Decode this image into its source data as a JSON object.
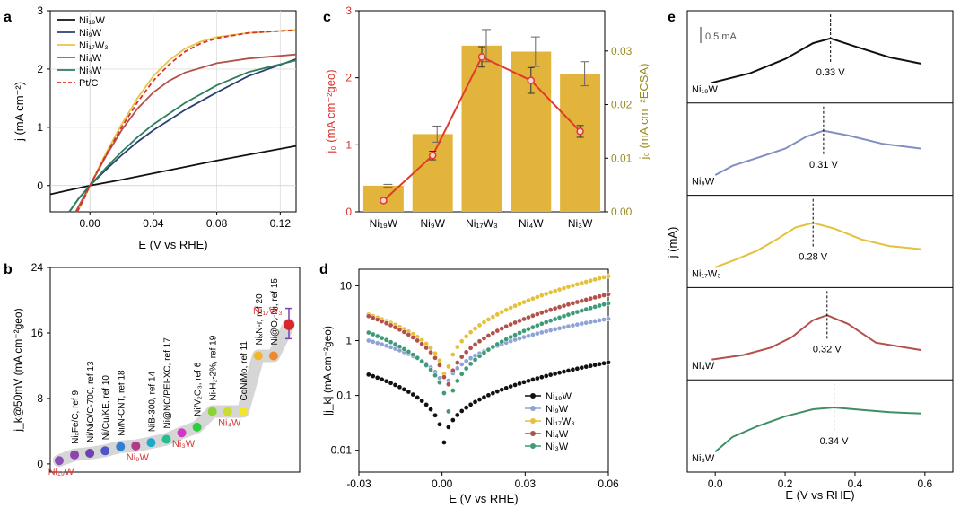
{
  "panels": {
    "a": {
      "label": "a",
      "type": "line",
      "xlabel": "E (V vs RHE)",
      "ylabel": "j (mA cm⁻²)",
      "xlim": [
        -0.025,
        0.13
      ],
      "ylim": [
        -0.45,
        3.0
      ],
      "xticks": [
        "0.00",
        "0.04",
        "0.08",
        "0.12"
      ],
      "yticks": [
        "0",
        "1",
        "2",
        "3"
      ],
      "series": [
        {
          "name": "Ni19W",
          "legend": "Ni₁₉W",
          "color": "#111111",
          "dash": false,
          "x": [
            -0.025,
            0.0,
            0.02,
            0.04,
            0.06,
            0.08,
            0.1,
            0.13
          ],
          "y": [
            -0.15,
            0.0,
            0.1,
            0.21,
            0.32,
            0.43,
            0.53,
            0.68
          ]
        },
        {
          "name": "Ni9W",
          "legend": "Ni₉W",
          "color": "#2b3f73",
          "dash": false,
          "x": [
            -0.013,
            -0.007,
            0.0,
            0.01,
            0.02,
            0.03,
            0.04,
            0.06,
            0.08,
            0.1,
            0.13
          ],
          "y": [
            -0.45,
            -0.22,
            0.0,
            0.27,
            0.52,
            0.75,
            0.95,
            1.3,
            1.6,
            1.88,
            2.17
          ]
        },
        {
          "name": "Ni17W3",
          "legend": "Ni₁₇W₃",
          "color": "#e8c547",
          "dash": false,
          "x": [
            -0.008,
            -0.004,
            0.0,
            0.01,
            0.02,
            0.03,
            0.04,
            0.05,
            0.06,
            0.07,
            0.08,
            0.1,
            0.13
          ],
          "y": [
            -0.45,
            -0.25,
            0.0,
            0.55,
            1.05,
            1.5,
            1.88,
            2.15,
            2.35,
            2.47,
            2.55,
            2.62,
            2.67
          ]
        },
        {
          "name": "Ni4W",
          "legend": "Ni₄W",
          "color": "#b4504a",
          "dash": false,
          "x": [
            -0.009,
            -0.005,
            0.0,
            0.01,
            0.02,
            0.03,
            0.04,
            0.05,
            0.06,
            0.08,
            0.1,
            0.13
          ],
          "y": [
            -0.45,
            -0.25,
            0.0,
            0.5,
            0.95,
            1.32,
            1.6,
            1.8,
            1.94,
            2.1,
            2.18,
            2.25
          ]
        },
        {
          "name": "Ni3W",
          "legend": "Ni₃W",
          "color": "#2e7d5b",
          "dash": false,
          "x": [
            -0.013,
            -0.007,
            0.0,
            0.01,
            0.02,
            0.03,
            0.04,
            0.06,
            0.08,
            0.1,
            0.13
          ],
          "y": [
            -0.45,
            -0.22,
            0.0,
            0.3,
            0.58,
            0.83,
            1.05,
            1.42,
            1.72,
            1.95,
            2.15
          ]
        },
        {
          "name": "PtC",
          "legend": "Pt/C",
          "color": "#d9312b",
          "dash": true,
          "x": [
            -0.008,
            -0.004,
            0.0,
            0.01,
            0.02,
            0.03,
            0.04,
            0.05,
            0.06,
            0.07,
            0.08,
            0.1,
            0.13
          ],
          "y": [
            -0.45,
            -0.24,
            0.0,
            0.52,
            1.0,
            1.43,
            1.8,
            2.08,
            2.3,
            2.44,
            2.53,
            2.62,
            2.67
          ]
        }
      ]
    },
    "b": {
      "label": "b",
      "type": "scatter",
      "ylabel": "j_k@50mV (mA cm⁻²geo)",
      "ylim": [
        -1,
        24
      ],
      "yticks": [
        "0",
        "8",
        "16",
        "24"
      ],
      "points": [
        {
          "label": "Ni₁₉W",
          "value": 0.4,
          "color": "#8a4fb5",
          "highlight": true
        },
        {
          "label": "NiₓFe/C, ref 9",
          "value": 1.1,
          "color": "#8e44ad",
          "highlight": false
        },
        {
          "label": "Ni/NiO/C-700, ref 13",
          "value": 1.3,
          "color": "#6d3fb0",
          "highlight": false
        },
        {
          "label": "Ni/Cu/KE, ref 10",
          "value": 1.6,
          "color": "#4e54c8",
          "highlight": false
        },
        {
          "label": "Ni/N-CNT, ref 18",
          "value": 2.1,
          "color": "#2f80d1",
          "highlight": false
        },
        {
          "label": "Ni₉W",
          "value": 2.2,
          "color": "#b03a8c",
          "highlight": true
        },
        {
          "label": "NiB-300, ref 14",
          "value": 2.6,
          "color": "#1fa8c9",
          "highlight": false
        },
        {
          "label": "Ni@NC/PEI-XC, ref 17",
          "value": 3.0,
          "color": "#1fbf8f",
          "highlight": false
        },
        {
          "label": "Ni₃W",
          "value": 3.8,
          "color": "#d237c4",
          "highlight": true
        },
        {
          "label": "Ni/V₂O₃, ref 6",
          "value": 4.5,
          "color": "#2ecc40",
          "highlight": false
        },
        {
          "label": "Ni-H₂-2%, ref 19",
          "value": 6.4,
          "color": "#8bd42c",
          "highlight": false
        },
        {
          "label": "Ni₄W",
          "value": 6.4,
          "color": "#c9dc2f",
          "highlight": true
        },
        {
          "label": "CoNiMo, ref 11",
          "value": 6.4,
          "color": "#f2e52a",
          "highlight": false
        },
        {
          "label": "NiₓN-r, ref 20",
          "value": 13.2,
          "color": "#f4b52c",
          "highlight": false
        },
        {
          "label": "Ni@Oᵥ-Ni, ref 15",
          "value": 13.2,
          "color": "#ef8a2b",
          "highlight": false
        },
        {
          "label": "Ni₁₇W₃",
          "value": 17.0,
          "color": "#d9262b",
          "highlight": true
        }
      ]
    },
    "c": {
      "label": "c",
      "type": "bar",
      "categories": [
        "Ni₁₉W",
        "Ni₉W",
        "Ni₁₇W₃",
        "Ni₄W",
        "Ni₃W"
      ],
      "ylabel_left": "j₀ (mA cm⁻²geo)",
      "ylabel_right": "j₀ (mA cm⁻²ECSA)",
      "ylim_left": [
        0,
        3
      ],
      "ylim_right": [
        0,
        0.0375
      ],
      "yticks_left": [
        "0",
        "1",
        "2",
        "3"
      ],
      "yticks_right": [
        "0.00",
        "0.01",
        "0.02",
        "0.03"
      ],
      "bars": {
        "name": "j0 geo",
        "values": [
          0.39,
          1.16,
          2.48,
          2.39,
          2.06
        ],
        "errors": [
          0.02,
          0.12,
          0.24,
          0.22,
          0.18
        ],
        "color": "#e3b43c"
      },
      "line": {
        "name": "j0 ECSA",
        "values": [
          0.0021,
          0.0105,
          0.0289,
          0.0245,
          0.015
        ],
        "errors": [
          0.0003,
          0.0008,
          0.0019,
          0.0024,
          0.0011
        ],
        "color": "#e03a2c"
      }
    },
    "d": {
      "label": "d",
      "type": "scatter",
      "xlabel": "E (V vs RHE)",
      "ylabel": "|j_k| (mA cm⁻²geo)",
      "xlim": [
        -0.03,
        0.06
      ],
      "ylim_log": [
        0.004,
        20
      ],
      "xticks": [
        "-0.03",
        "0.00",
        "0.03",
        "0.06"
      ],
      "yticks": [
        "0.01",
        "0.1",
        "1",
        "10"
      ],
      "series": [
        {
          "name": "Ni19W",
          "legend": "Ni₁₉W",
          "color": "#111111",
          "left": 0.24,
          "right": 0.4,
          "min": 0.007
        },
        {
          "name": "Ni9W",
          "legend": "Ni₉W",
          "color": "#8fa3d6",
          "left": 1.0,
          "right": 2.5,
          "min": 0.06
        },
        {
          "name": "Ni17W3",
          "legend": "Ni₁₇W₃",
          "color": "#e5c13b",
          "left": 3.0,
          "right": 15.0,
          "min": 0.08
        },
        {
          "name": "Ni4W",
          "legend": "Ni₄W",
          "color": "#b4504a",
          "left": 2.8,
          "right": 7.0,
          "min": 0.05
        },
        {
          "name": "Ni3W",
          "legend": "Ni₃W",
          "color": "#3f9b77",
          "left": 1.4,
          "right": 4.8,
          "min": 0.02
        }
      ]
    },
    "e": {
      "label": "e",
      "type": "line",
      "xlabel": "E (V vs RHE)",
      "ylabel": "j (mA)",
      "xticks": [
        "0.0",
        "0.2",
        "0.4",
        "0.6"
      ],
      "xlim": [
        -0.08,
        0.68
      ],
      "scale_bar": "0.5 mA",
      "traces": [
        {
          "name": "Ni₁₉W",
          "peak_label": "0.33 V",
          "peak": 0.33,
          "color": "#111111",
          "x": [
            -0.01,
            0.1,
            0.2,
            0.28,
            0.33,
            0.4,
            0.5,
            0.59
          ],
          "y": [
            0.0,
            0.12,
            0.3,
            0.5,
            0.56,
            0.46,
            0.32,
            0.24
          ]
        },
        {
          "name": "Ni₉W",
          "peak_label": "0.31 V",
          "peak": 0.31,
          "color": "#7f8fc4",
          "x": [
            0.0,
            0.05,
            0.12,
            0.2,
            0.26,
            0.31,
            0.38,
            0.48,
            0.59
          ],
          "y": [
            0.0,
            0.35,
            0.65,
            1.0,
            1.45,
            1.68,
            1.5,
            1.18,
            1.0
          ]
        },
        {
          "name": "Ni₁₇W₃",
          "peak_label": "0.28 V",
          "peak": 0.28,
          "color": "#e5c13b",
          "x": [
            0.0,
            0.06,
            0.12,
            0.18,
            0.23,
            0.28,
            0.34,
            0.42,
            0.5,
            0.59
          ],
          "y": [
            0.0,
            0.35,
            0.75,
            1.3,
            1.8,
            2.0,
            1.75,
            1.25,
            0.95,
            0.82
          ]
        },
        {
          "name": "Ni₄W",
          "peak_label": "0.32 V",
          "peak": 0.32,
          "color": "#b4504a",
          "x": [
            -0.01,
            0.08,
            0.16,
            0.22,
            0.28,
            0.32,
            0.38,
            0.46,
            0.59
          ],
          "y": [
            0.0,
            0.12,
            0.32,
            0.6,
            1.05,
            1.18,
            0.95,
            0.45,
            0.25
          ]
        },
        {
          "name": "Ni₃W",
          "peak_label": "0.34 V",
          "peak": 0.34,
          "color": "#3f8f64",
          "x": [
            0.0,
            0.05,
            0.12,
            0.2,
            0.28,
            0.34,
            0.42,
            0.5,
            0.59
          ],
          "y": [
            0.0,
            0.42,
            0.72,
            1.0,
            1.2,
            1.25,
            1.18,
            1.12,
            1.08
          ]
        }
      ]
    }
  }
}
